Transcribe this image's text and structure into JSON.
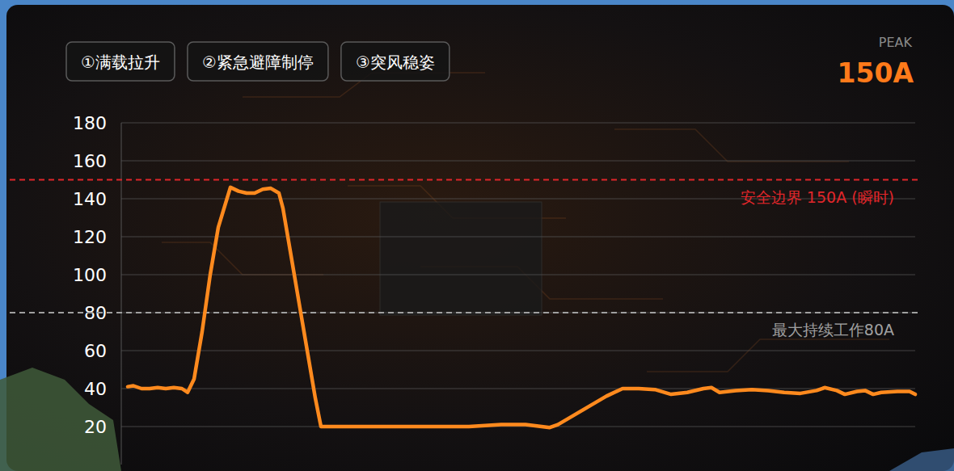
{
  "chart_data": {
    "type": "line",
    "color": "#ff8a1e",
    "x": [
      0,
      7,
      17,
      27,
      37,
      47,
      57,
      67,
      74,
      82,
      92,
      102,
      112,
      127,
      137,
      147,
      157,
      167,
      177,
      187,
      192,
      202,
      212,
      222,
      232,
      239,
      262,
      292,
      342,
      392,
      422,
      462,
      492,
      512,
      522,
      532,
      552,
      572,
      592,
      612,
      632,
      652,
      672,
      692,
      712,
      722,
      732,
      752,
      772,
      792,
      812,
      832,
      852,
      862,
      877,
      887,
      902,
      912,
      922,
      932,
      952,
      967,
      974
    ],
    "values": [
      41,
      41.5,
      40,
      40,
      40.5,
      40,
      40.5,
      40,
      38,
      45,
      70,
      100,
      125,
      146,
      144,
      143,
      143,
      145,
      145.5,
      143,
      135,
      110,
      85,
      60,
      35,
      20,
      20,
      20,
      20,
      20,
      20,
      21,
      21,
      20,
      19.5,
      21,
      26,
      31,
      36,
      40,
      40,
      39.5,
      37,
      38,
      40,
      40.5,
      38,
      39,
      39.5,
      39,
      38,
      37.5,
      39,
      40.5,
      39,
      37,
      38.5,
      39,
      37,
      38,
      38.5,
      38.5,
      37
    ],
    "xlim": [
      0,
      974
    ],
    "ylim": [
      0,
      180
    ],
    "yticks": [
      20,
      40,
      60,
      80,
      100,
      120,
      140,
      160,
      180
    ],
    "grid": true,
    "tick_labels": "y",
    "reference_lines": [
      {
        "value": 150,
        "label": "安全边界 150A (瞬时)",
        "color": "#e0262a"
      },
      {
        "value": 80,
        "label": "最大持续工作80A",
        "color": "#a0a0a0"
      }
    ]
  },
  "tabs": [
    "①满载拉升",
    "②紧急避障制停",
    "③突风稳姿"
  ],
  "peak": {
    "label": "PEAK",
    "value_label": "150A"
  }
}
